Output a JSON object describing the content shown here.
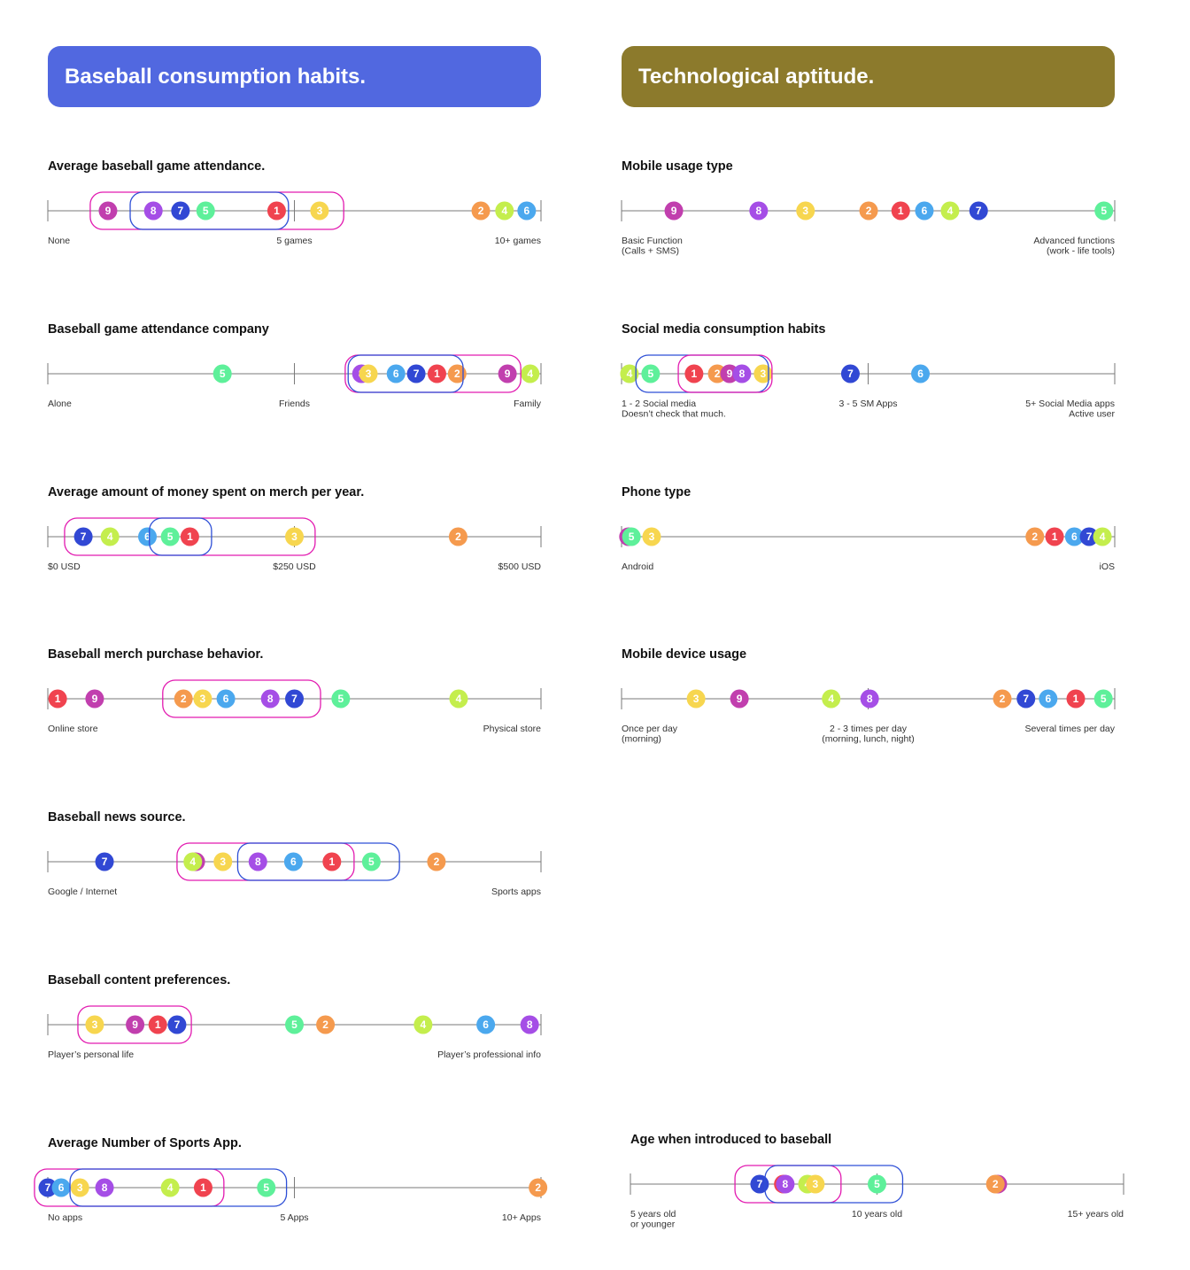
{
  "colors": {
    "header_left": "#5168e0",
    "header_right": "#8c7a2c",
    "group_pink": "#e21ab0",
    "group_blue": "#2e4fd6",
    "axis": "#7a7a7a",
    "persona": {
      "1": "#f0434f",
      "2": "#f59a4e",
      "3": "#f7d64f",
      "4": "#c4ee4d",
      "5": "#5ef09a",
      "6": "#4ba8ee",
      "7": "#3148d4",
      "8": "#a54ee6",
      "9": "#c13fae"
    }
  },
  "headers": {
    "left": "Baseball consumption habits.",
    "right": "Technological aptitude."
  },
  "chart_data": [
    {
      "type": "scatter",
      "id": "attendance",
      "title": "Average baseball game attendance.",
      "ticks": [
        {
          "x": 0,
          "label": "None"
        },
        {
          "x": 50,
          "label": "5 games"
        },
        {
          "x": 100,
          "label": "10+ games"
        }
      ],
      "points": [
        {
          "label": "9",
          "x": 12.2
        },
        {
          "label": "8",
          "x": 21.4
        },
        {
          "label": "7",
          "x": 26.9
        },
        {
          "label": "5",
          "x": 32.0
        },
        {
          "label": "1",
          "x": 46.4
        },
        {
          "label": "3",
          "x": 55.1
        },
        {
          "label": "2",
          "x": 87.8
        },
        {
          "label": "4",
          "x": 92.6
        },
        {
          "label": "6",
          "x": 97.1
        }
      ],
      "groups": [
        {
          "color": "pink",
          "from": 8.6,
          "to": 60.0
        },
        {
          "color": "blue",
          "from": 16.7,
          "to": 48.8
        }
      ]
    },
    {
      "type": "scatter",
      "id": "company",
      "title": "Baseball game attendance company",
      "ticks": [
        {
          "x": 0,
          "label": "Alone"
        },
        {
          "x": 50,
          "label": "Friends"
        },
        {
          "x": 100,
          "label": "Family"
        }
      ],
      "points": [
        {
          "label": "5",
          "x": 35.4
        },
        {
          "label": "8",
          "x": 63.6
        },
        {
          "label": "3",
          "x": 65.0
        },
        {
          "label": "6",
          "x": 70.6
        },
        {
          "label": "7",
          "x": 74.7
        },
        {
          "label": "1",
          "x": 78.9
        },
        {
          "label": "2",
          "x": 83.0
        },
        {
          "label": "9",
          "x": 93.2
        },
        {
          "label": "4",
          "x": 97.8
        }
      ],
      "groups": [
        {
          "color": "pink",
          "from": 60.3,
          "to": 95.9
        },
        {
          "color": "blue",
          "from": 60.9,
          "to": 84.2
        }
      ]
    },
    {
      "type": "scatter",
      "id": "merch-spend",
      "title": "Average amount of money spent on merch per year.",
      "ticks": [
        {
          "x": 0,
          "label": "$0 USD"
        },
        {
          "x": 250,
          "label": "$250 USD"
        },
        {
          "x": 500,
          "label": "$500 USD"
        }
      ],
      "xlim": [
        0,
        500
      ],
      "points": [
        {
          "label": "7",
          "x": 36
        },
        {
          "label": "4",
          "x": 63
        },
        {
          "label": "6",
          "x": 101
        },
        {
          "label": "5",
          "x": 124
        },
        {
          "label": "1",
          "x": 144
        },
        {
          "label": "3",
          "x": 250
        },
        {
          "label": "2",
          "x": 416
        }
      ],
      "groups": [
        {
          "color": "pink",
          "from": 17,
          "to": 271
        },
        {
          "color": "blue",
          "from": 103,
          "to": 166
        }
      ]
    },
    {
      "type": "scatter",
      "id": "merch-behavior",
      "title": "Baseball merch purchase behavior.",
      "ticks": [
        {
          "x": 0,
          "label": "Online store"
        },
        {
          "x": 100,
          "label": "Physical store"
        }
      ],
      "points": [
        {
          "label": "1",
          "x": 2.0
        },
        {
          "label": "9",
          "x": 9.5
        },
        {
          "label": "2",
          "x": 27.5
        },
        {
          "label": "3",
          "x": 31.4
        },
        {
          "label": "6",
          "x": 36.1
        },
        {
          "label": "8",
          "x": 45.1
        },
        {
          "label": "7",
          "x": 50.0
        },
        {
          "label": "5",
          "x": 59.4
        },
        {
          "label": "4",
          "x": 83.3
        }
      ],
      "groups": [
        {
          "color": "pink",
          "from": 23.3,
          "to": 55.3
        }
      ]
    },
    {
      "type": "scatter",
      "id": "news-source",
      "title": "Baseball news source.",
      "ticks": [
        {
          "x": 0,
          "label": "Google / Internet"
        },
        {
          "x": 100,
          "label": "Sports apps"
        }
      ],
      "points": [
        {
          "label": "7",
          "x": 11.5
        },
        {
          "label": "9",
          "x": 30.0
        },
        {
          "label": "4",
          "x": 29.4
        },
        {
          "label": "3",
          "x": 35.5
        },
        {
          "label": "8",
          "x": 42.6
        },
        {
          "label": "6",
          "x": 49.8
        },
        {
          "label": "1",
          "x": 57.6
        },
        {
          "label": "5",
          "x": 65.6
        },
        {
          "label": "2",
          "x": 78.8
        }
      ],
      "groups": [
        {
          "color": "pink",
          "from": 26.2,
          "to": 62.1
        },
        {
          "color": "blue",
          "from": 38.5,
          "to": 71.3
        }
      ]
    },
    {
      "type": "scatter",
      "id": "content-preferences",
      "title": "Baseball content preferences.",
      "ticks": [
        {
          "x": 0,
          "label": "Player’s personal life"
        },
        {
          "x": 100,
          "label": "Player’s professional info"
        }
      ],
      "points": [
        {
          "label": "3",
          "x": 9.5
        },
        {
          "label": "9",
          "x": 17.7
        },
        {
          "label": "1",
          "x": 22.3
        },
        {
          "label": "7",
          "x": 26.2
        },
        {
          "label": "5",
          "x": 50.0
        },
        {
          "label": "2",
          "x": 56.3
        },
        {
          "label": "4",
          "x": 76.1
        },
        {
          "label": "6",
          "x": 88.8
        },
        {
          "label": "8",
          "x": 97.7
        }
      ],
      "groups": [
        {
          "color": "pink",
          "from": 6.1,
          "to": 29.1
        }
      ]
    },
    {
      "type": "scatter",
      "id": "sports-apps",
      "title": "Average Number of Sports App.",
      "ticks": [
        {
          "x": 0,
          "label": "No apps"
        },
        {
          "x": 5,
          "label": "5 Apps"
        },
        {
          "x": 10,
          "label": "10+ Apps"
        }
      ],
      "xlim": [
        0,
        10
      ],
      "points": [
        {
          "label": "7",
          "x": 0.0
        },
        {
          "label": "6",
          "x": 0.27
        },
        {
          "label": "3",
          "x": 0.65
        },
        {
          "label": "8",
          "x": 1.15
        },
        {
          "label": "4",
          "x": 2.48
        },
        {
          "label": "1",
          "x": 3.15
        },
        {
          "label": "5",
          "x": 4.43
        },
        {
          "label": "2",
          "x": 9.94
        }
      ],
      "groups": [
        {
          "color": "pink",
          "from": -0.27,
          "to": 3.57
        },
        {
          "color": "blue",
          "from": 0.45,
          "to": 4.84
        }
      ]
    },
    {
      "type": "scatter",
      "id": "mobile-usage",
      "title": "Mobile usage type",
      "ticks": [
        {
          "x": 0,
          "label": "Basic Function",
          "label2": "(Calls + SMS)"
        },
        {
          "x": 100,
          "label": "Advanced functions",
          "label2": "(work - life tools)"
        }
      ],
      "points": [
        {
          "label": "9",
          "x": 10.6
        },
        {
          "label": "8",
          "x": 27.8
        },
        {
          "label": "3",
          "x": 37.3
        },
        {
          "label": "2",
          "x": 50.1
        },
        {
          "label": "1",
          "x": 56.6
        },
        {
          "label": "6",
          "x": 61.4
        },
        {
          "label": "4",
          "x": 66.6
        },
        {
          "label": "7",
          "x": 72.4
        },
        {
          "label": "5",
          "x": 97.8
        }
      ],
      "groups": []
    },
    {
      "type": "scatter",
      "id": "social-media",
      "title": "Social media consumption habits",
      "ticks": [
        {
          "x": 0,
          "label": "1 - 2 Social media",
          "label2": "Doesn’t check that much."
        },
        {
          "x": 50,
          "label": "3 - 5 SM Apps"
        },
        {
          "x": 100,
          "label": "5+ Social Media apps",
          "label2": "Active user"
        }
      ],
      "points": [
        {
          "label": "4",
          "x": 1.6
        },
        {
          "label": "5",
          "x": 5.9
        },
        {
          "label": "1",
          "x": 14.7
        },
        {
          "label": "2",
          "x": 19.4
        },
        {
          "label": "9",
          "x": 21.9
        },
        {
          "label": "8",
          "x": 24.4
        },
        {
          "label": "3",
          "x": 28.7
        },
        {
          "label": "7",
          "x": 46.4
        },
        {
          "label": "6",
          "x": 60.6
        }
      ],
      "groups": [
        {
          "color": "blue",
          "from": 2.9,
          "to": 29.8
        },
        {
          "color": "pink",
          "from": 11.5,
          "to": 30.5
        }
      ]
    },
    {
      "type": "scatter",
      "id": "phone-type",
      "title": "Phone type",
      "ticks": [
        {
          "x": 0,
          "label": "Android"
        },
        {
          "x": 100,
          "label": "iOS"
        }
      ],
      "points": [
        {
          "label": "9",
          "x": 1.4
        },
        {
          "label": "5",
          "x": 2.0
        },
        {
          "label": "3",
          "x": 6.1
        },
        {
          "label": "2",
          "x": 83.8
        },
        {
          "label": "1",
          "x": 87.8
        },
        {
          "label": "6",
          "x": 91.8
        },
        {
          "label": "7",
          "x": 94.8
        },
        {
          "label": "4",
          "x": 97.5
        }
      ],
      "groups": []
    },
    {
      "type": "scatter",
      "id": "device-usage",
      "title": "Mobile device usage",
      "ticks": [
        {
          "x": 0,
          "label": "Once per day",
          "label2": "(morning)"
        },
        {
          "x": 50,
          "label": "2 - 3 times per day",
          "label2": "(morning, lunch, night)"
        },
        {
          "x": 100,
          "label": "Several times per day"
        }
      ],
      "points": [
        {
          "label": "3",
          "x": 15.1
        },
        {
          "label": "9",
          "x": 23.9
        },
        {
          "label": "4",
          "x": 42.5
        },
        {
          "label": "8",
          "x": 50.3
        },
        {
          "label": "2",
          "x": 77.2
        },
        {
          "label": "7",
          "x": 82.0
        },
        {
          "label": "6",
          "x": 86.5
        },
        {
          "label": "1",
          "x": 92.1
        },
        {
          "label": "5",
          "x": 97.7
        }
      ],
      "groups": []
    },
    {
      "type": "scatter",
      "id": "age-introduced",
      "title": "Age when introduced to baseball",
      "ticks": [
        {
          "x": 0,
          "label": "5 years old",
          "label2": "or younger"
        },
        {
          "x": 50,
          "label": "10 years old"
        },
        {
          "x": 100,
          "label": "15+ years old"
        }
      ],
      "points": [
        {
          "label": "7",
          "x": 26.2
        },
        {
          "label": "1",
          "x": 31.0
        },
        {
          "label": "8",
          "x": 31.4
        },
        {
          "label": "4",
          "x": 35.9
        },
        {
          "label": "3",
          "x": 37.5
        },
        {
          "label": "5",
          "x": 50.0
        },
        {
          "label": "9",
          "x": 74.5
        },
        {
          "label": "2",
          "x": 74.0
        }
      ],
      "groups": [
        {
          "color": "pink",
          "from": 21.2,
          "to": 42.7
        },
        {
          "color": "blue",
          "from": 27.3,
          "to": 55.2
        }
      ]
    }
  ]
}
